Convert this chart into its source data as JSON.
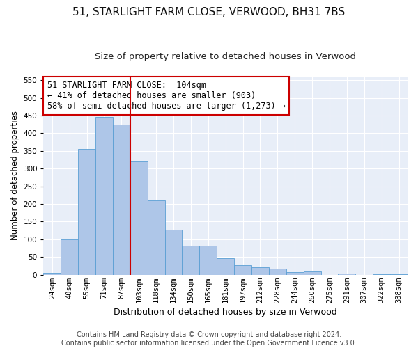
{
  "title": "51, STARLIGHT FARM CLOSE, VERWOOD, BH31 7BS",
  "subtitle": "Size of property relative to detached houses in Verwood",
  "xlabel": "Distribution of detached houses by size in Verwood",
  "ylabel": "Number of detached properties",
  "categories": [
    "24sqm",
    "40sqm",
    "55sqm",
    "71sqm",
    "87sqm",
    "103sqm",
    "118sqm",
    "134sqm",
    "150sqm",
    "165sqm",
    "181sqm",
    "197sqm",
    "212sqm",
    "228sqm",
    "244sqm",
    "260sqm",
    "275sqm",
    "291sqm",
    "307sqm",
    "322sqm",
    "338sqm"
  ],
  "values": [
    5,
    100,
    355,
    445,
    425,
    320,
    210,
    128,
    83,
    83,
    47,
    28,
    22,
    18,
    8,
    9,
    0,
    3,
    0,
    2,
    1
  ],
  "bar_color": "#aec6e8",
  "bar_edge_color": "#5a9fd4",
  "vline_color": "#cc0000",
  "annotation_text": "51 STARLIGHT FARM CLOSE:  104sqm\n← 41% of detached houses are smaller (903)\n58% of semi-detached houses are larger (1,273) →",
  "annotation_box_color": "#ffffff",
  "annotation_box_edge": "#cc0000",
  "ylim": [
    0,
    560
  ],
  "yticks": [
    0,
    50,
    100,
    150,
    200,
    250,
    300,
    350,
    400,
    450,
    500,
    550
  ],
  "background_color": "#e8eef8",
  "footer_line1": "Contains HM Land Registry data © Crown copyright and database right 2024.",
  "footer_line2": "Contains public sector information licensed under the Open Government Licence v3.0.",
  "title_fontsize": 11,
  "subtitle_fontsize": 9.5,
  "xlabel_fontsize": 9,
  "ylabel_fontsize": 8.5,
  "tick_fontsize": 7.5,
  "annotation_fontsize": 8.5,
  "footer_fontsize": 7
}
